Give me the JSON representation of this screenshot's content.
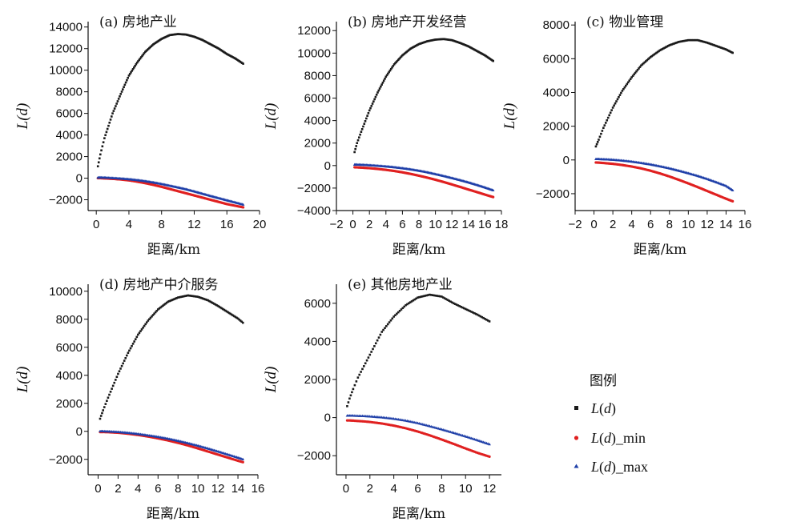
{
  "chart_data": [
    {
      "type": "scatter",
      "title": "(a) 房地产业",
      "xlabel": "距离/km",
      "ylabel": "L(d)",
      "xlim": [
        -1,
        20
      ],
      "ylim": [
        -3000,
        14500
      ],
      "xticks": [
        0,
        4,
        8,
        12,
        16,
        20
      ],
      "yticks": [
        -2000,
        0,
        2000,
        4000,
        6000,
        8000,
        10000,
        12000,
        14000
      ],
      "x": [
        0.2,
        0.5,
        1,
        2,
        3,
        4,
        5,
        6,
        7,
        8,
        9,
        10,
        11,
        12,
        13,
        14,
        15,
        16,
        17,
        18
      ],
      "series": [
        {
          "name": "L(d)",
          "values": [
            1100,
            2200,
            3700,
            6000,
            7800,
            9500,
            10700,
            11700,
            12400,
            12900,
            13250,
            13350,
            13300,
            13100,
            12800,
            12400,
            12000,
            11500,
            11100,
            10600
          ]
        },
        {
          "name": "L(d)_min",
          "values": [
            0,
            0,
            -20,
            -60,
            -120,
            -200,
            -320,
            -460,
            -620,
            -800,
            -1000,
            -1200,
            -1400,
            -1600,
            -1800,
            -2000,
            -2200,
            -2400,
            -2550,
            -2700
          ]
        },
        {
          "name": "L(d)_max",
          "values": [
            50,
            60,
            50,
            10,
            -40,
            -100,
            -180,
            -280,
            -400,
            -540,
            -700,
            -860,
            -1030,
            -1230,
            -1440,
            -1650,
            -1850,
            -2050,
            -2250,
            -2450
          ]
        }
      ]
    },
    {
      "type": "scatter",
      "title": "(b) 房地产开发经营",
      "xlabel": "距离/km",
      "ylabel": "L(d)",
      "xlim": [
        -2,
        18
      ],
      "ylim": [
        -4000,
        12800
      ],
      "xticks": [
        -2,
        0,
        2,
        4,
        6,
        8,
        10,
        12,
        14,
        16,
        18
      ],
      "yticks": [
        -4000,
        -2000,
        0,
        2000,
        4000,
        6000,
        8000,
        10000,
        12000
      ],
      "x": [
        0.2,
        0.5,
        1,
        2,
        3,
        4,
        5,
        6,
        7,
        8,
        9,
        10,
        11,
        12,
        13,
        14,
        15,
        16,
        17
      ],
      "series": [
        {
          "name": "L(d)",
          "values": [
            1200,
            2000,
            3000,
            4900,
            6500,
            7900,
            9000,
            9800,
            10400,
            10800,
            11050,
            11200,
            11250,
            11150,
            10900,
            10600,
            10200,
            9800,
            9300
          ]
        },
        {
          "name": "L(d)_min",
          "values": [
            -150,
            -160,
            -180,
            -230,
            -300,
            -380,
            -480,
            -600,
            -740,
            -900,
            -1070,
            -1260,
            -1460,
            -1680,
            -1900,
            -2130,
            -2350,
            -2580,
            -2800
          ]
        },
        {
          "name": "L(d)_max",
          "values": [
            80,
            80,
            70,
            30,
            -20,
            -80,
            -150,
            -240,
            -340,
            -460,
            -600,
            -760,
            -930,
            -1110,
            -1300,
            -1500,
            -1720,
            -1950,
            -2200
          ]
        }
      ]
    },
    {
      "type": "scatter",
      "title": "(c) 物业管理",
      "xlabel": "距离/km",
      "ylabel": "L(d)",
      "xlim": [
        -2,
        16
      ],
      "ylim": [
        -3000,
        8200
      ],
      "xticks": [
        -2,
        0,
        2,
        4,
        6,
        8,
        10,
        12,
        14,
        16
      ],
      "yticks": [
        -2000,
        0,
        2000,
        4000,
        6000,
        8000
      ],
      "x": [
        0.2,
        0.5,
        1,
        2,
        3,
        4,
        5,
        6,
        7,
        8,
        9,
        10,
        11,
        12,
        13,
        14,
        14.7
      ],
      "series": [
        {
          "name": "L(d)",
          "values": [
            800,
            1200,
            1900,
            3100,
            4100,
            4900,
            5600,
            6100,
            6500,
            6800,
            7000,
            7100,
            7100,
            6950,
            6750,
            6550,
            6350
          ]
        },
        {
          "name": "L(d)_min",
          "values": [
            -150,
            -160,
            -180,
            -230,
            -300,
            -390,
            -500,
            -640,
            -800,
            -980,
            -1180,
            -1390,
            -1610,
            -1840,
            -2070,
            -2300,
            -2450
          ]
        },
        {
          "name": "L(d)_max",
          "values": [
            50,
            50,
            40,
            10,
            -40,
            -100,
            -180,
            -270,
            -380,
            -500,
            -640,
            -790,
            -950,
            -1130,
            -1330,
            -1540,
            -1800
          ]
        }
      ]
    },
    {
      "type": "scatter",
      "title": "(d) 房地产中介服务",
      "xlabel": "距离/km",
      "ylabel": "L(d)",
      "xlim": [
        -1,
        16
      ],
      "ylim": [
        -3100,
        10500
      ],
      "xticks": [
        0,
        2,
        4,
        6,
        8,
        10,
        12,
        14,
        16
      ],
      "yticks": [
        -2000,
        0,
        2000,
        4000,
        6000,
        8000,
        10000
      ],
      "x": [
        0.2,
        0.5,
        1,
        2,
        3,
        4,
        5,
        6,
        7,
        8,
        9,
        10,
        11,
        12,
        13,
        14,
        14.5
      ],
      "series": [
        {
          "name": "L(d)",
          "values": [
            900,
            1500,
            2400,
            4100,
            5600,
            6900,
            7900,
            8700,
            9250,
            9550,
            9700,
            9600,
            9350,
            8950,
            8500,
            8050,
            7750
          ]
        },
        {
          "name": "L(d)_min",
          "values": [
            -50,
            -50,
            -60,
            -100,
            -170,
            -260,
            -370,
            -500,
            -650,
            -820,
            -1010,
            -1220,
            -1440,
            -1660,
            -1880,
            -2100,
            -2200
          ]
        },
        {
          "name": "L(d)_max",
          "values": [
            0,
            0,
            -10,
            -50,
            -110,
            -190,
            -290,
            -400,
            -530,
            -680,
            -850,
            -1030,
            -1230,
            -1440,
            -1660,
            -1880,
            -2000
          ]
        }
      ]
    },
    {
      "type": "scatter",
      "title": "(e) 其他房地产业",
      "xlabel": "距离/km",
      "ylabel": "L(d)",
      "xlim": [
        -0.8,
        13
      ],
      "ylim": [
        -3000,
        7000
      ],
      "xticks": [
        0,
        2,
        4,
        6,
        8,
        10,
        12
      ],
      "yticks": [
        -2000,
        0,
        2000,
        4000,
        6000
      ],
      "x": [
        0.1,
        0.3,
        0.6,
        1,
        1.5,
        2,
        3,
        4,
        5,
        6,
        7,
        8,
        9,
        10,
        11,
        12
      ],
      "series": [
        {
          "name": "L(d)",
          "values": [
            600,
            1000,
            1500,
            2100,
            2700,
            3300,
            4500,
            5300,
            5900,
            6300,
            6450,
            6350,
            6000,
            5700,
            5400,
            5050
          ]
        },
        {
          "name": "L(d)_min",
          "values": [
            -150,
            -150,
            -160,
            -180,
            -200,
            -230,
            -310,
            -420,
            -560,
            -730,
            -930,
            -1150,
            -1380,
            -1620,
            -1850,
            -2050
          ]
        },
        {
          "name": "L(d)_max",
          "values": [
            100,
            100,
            100,
            90,
            80,
            60,
            10,
            -60,
            -160,
            -290,
            -450,
            -620,
            -800,
            -990,
            -1190,
            -1400
          ]
        }
      ]
    }
  ],
  "legend": {
    "title": "图例",
    "items": [
      {
        "label": "L(d)",
        "color": "#1a1a1a",
        "marker": "square"
      },
      {
        "label": "L(d)_min",
        "color": "#e02020",
        "marker": "circle"
      },
      {
        "label": "L(d)_max",
        "color": "#1f3fa8",
        "marker": "triangle"
      }
    ]
  }
}
